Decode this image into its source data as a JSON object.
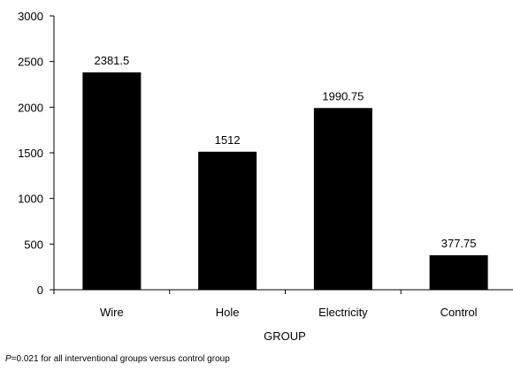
{
  "chart_data": {
    "type": "bar",
    "categories": [
      "Wire",
      "Hole",
      "Electricity",
      "Control"
    ],
    "values": [
      2381.5,
      1512,
      1990.75,
      377.75
    ],
    "value_labels": [
      "2381.5",
      "1512",
      "1990.75",
      "377.75"
    ],
    "xlabel": "GROUP",
    "ylabel": "",
    "ylim": [
      0,
      3000
    ],
    "yticks": [
      0,
      500,
      1000,
      1500,
      2000,
      2500,
      3000
    ],
    "ytick_labels": [
      "0",
      "500",
      "1000",
      "1500",
      "2000",
      "2500",
      "3000"
    ],
    "grid": false,
    "bar_color": "#000000"
  },
  "footnote": {
    "p_symbol": "P",
    "text": "=0.021 for all interventional groups versus control group"
  }
}
